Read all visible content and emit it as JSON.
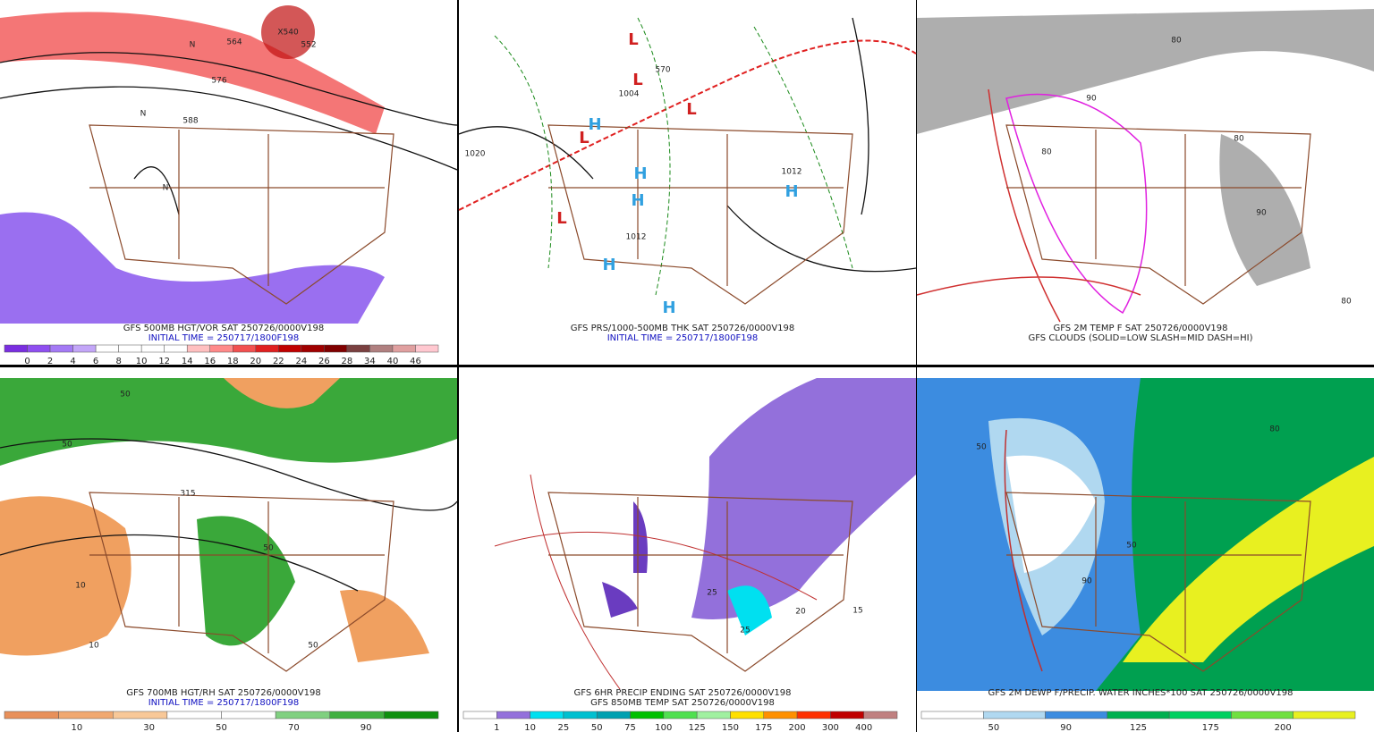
{
  "panels": [
    {
      "captions": [
        "GFS 500MB HGT/VOR SAT 250726/0000V198",
        "INITIAL TIME = 250717/1800F198"
      ],
      "map_labels": [
        "564",
        "552",
        "576",
        "588",
        "X540",
        "N",
        "N",
        "N"
      ],
      "colorbar": {
        "labels": [
          "0",
          "2",
          "4",
          "6",
          "8",
          "10",
          "12",
          "14",
          "16",
          "18",
          "20",
          "22",
          "24",
          "26",
          "28",
          "34",
          "40",
          "46"
        ],
        "colors": [
          "#7a2ee0",
          "#8f4ff0",
          "#a47af5",
          "#c3a6f8",
          "#ffffff",
          "#ffffff",
          "#ffffff",
          "#ffffff",
          "#ffc0c0",
          "#ff8a8a",
          "#f25050",
          "#e02020",
          "#c00000",
          "#a00000",
          "#800000",
          "#7a4040",
          "#b08080",
          "#e0a0a0",
          "#ffc8d0"
        ]
      }
    },
    {
      "captions": [
        "GFS PRS/1000-500MB THK SAT 250726/0000V198",
        "INITIAL TIME = 250717/1800F198"
      ],
      "map_labels": [
        "L",
        "L",
        "L",
        "L",
        "L",
        "H",
        "H",
        "H",
        "H",
        "H",
        "H",
        "1020",
        "1012",
        "1004",
        "1012",
        "570"
      ]
    },
    {
      "captions": [
        "GFS 2M TEMP F SAT 250726/0000V198",
        "GFS CLOUDS (SOLID=LOW SLASH=MID DASH=HI)"
      ],
      "map_labels": [
        "80",
        "90",
        "80",
        "90",
        "80",
        "80"
      ]
    },
    {
      "captions": [
        "GFS 700MB HGT/RH SAT 250726/0000V198",
        "INITIAL TIME = 250717/1800F198"
      ],
      "map_labels": [
        "50",
        "10",
        "315",
        "50",
        "50",
        "10",
        "50"
      ],
      "colorbar": {
        "labels": [
          "10",
          "30",
          "50",
          "70",
          "90"
        ],
        "colors": [
          "#e8905a",
          "#f0a870",
          "#f8c898",
          "#ffffff",
          "#ffffff",
          "#80d080",
          "#40b040",
          "#109010"
        ]
      }
    },
    {
      "captions": [
        "GFS 6HR PRECIP ENDING SAT 250726/0000V198",
        "GFS 850MB TEMP SAT 250726/0000V198"
      ],
      "map_labels": [
        "25",
        "15",
        "25",
        "20"
      ],
      "colorbar": {
        "labels": [
          "1",
          "10",
          "25",
          "50",
          "75",
          "100",
          "125",
          "150",
          "175",
          "200",
          "300",
          "400"
        ],
        "colors": [
          "#ffffff",
          "#9370db",
          "#00e0f0",
          "#00c0d0",
          "#00a0b0",
          "#00c000",
          "#50e050",
          "#a0f0a0",
          "#ffe000",
          "#ff9000",
          "#ff3000",
          "#c00000",
          "#c08080"
        ]
      }
    },
    {
      "captions": [
        "GFS 2M DEWP F/PRECIP. WATER INCHES*100 SAT 250726/0000V198"
      ],
      "map_labels": [
        "50",
        "90",
        "80",
        "50"
      ],
      "colorbar": {
        "labels": [
          "50",
          "90",
          "125",
          "175",
          "200"
        ],
        "colors": [
          "#ffffff",
          "#b0d8f0",
          "#3c8ce0",
          "#00b050",
          "#00d060",
          "#70e040",
          "#e8f020"
        ]
      }
    }
  ]
}
